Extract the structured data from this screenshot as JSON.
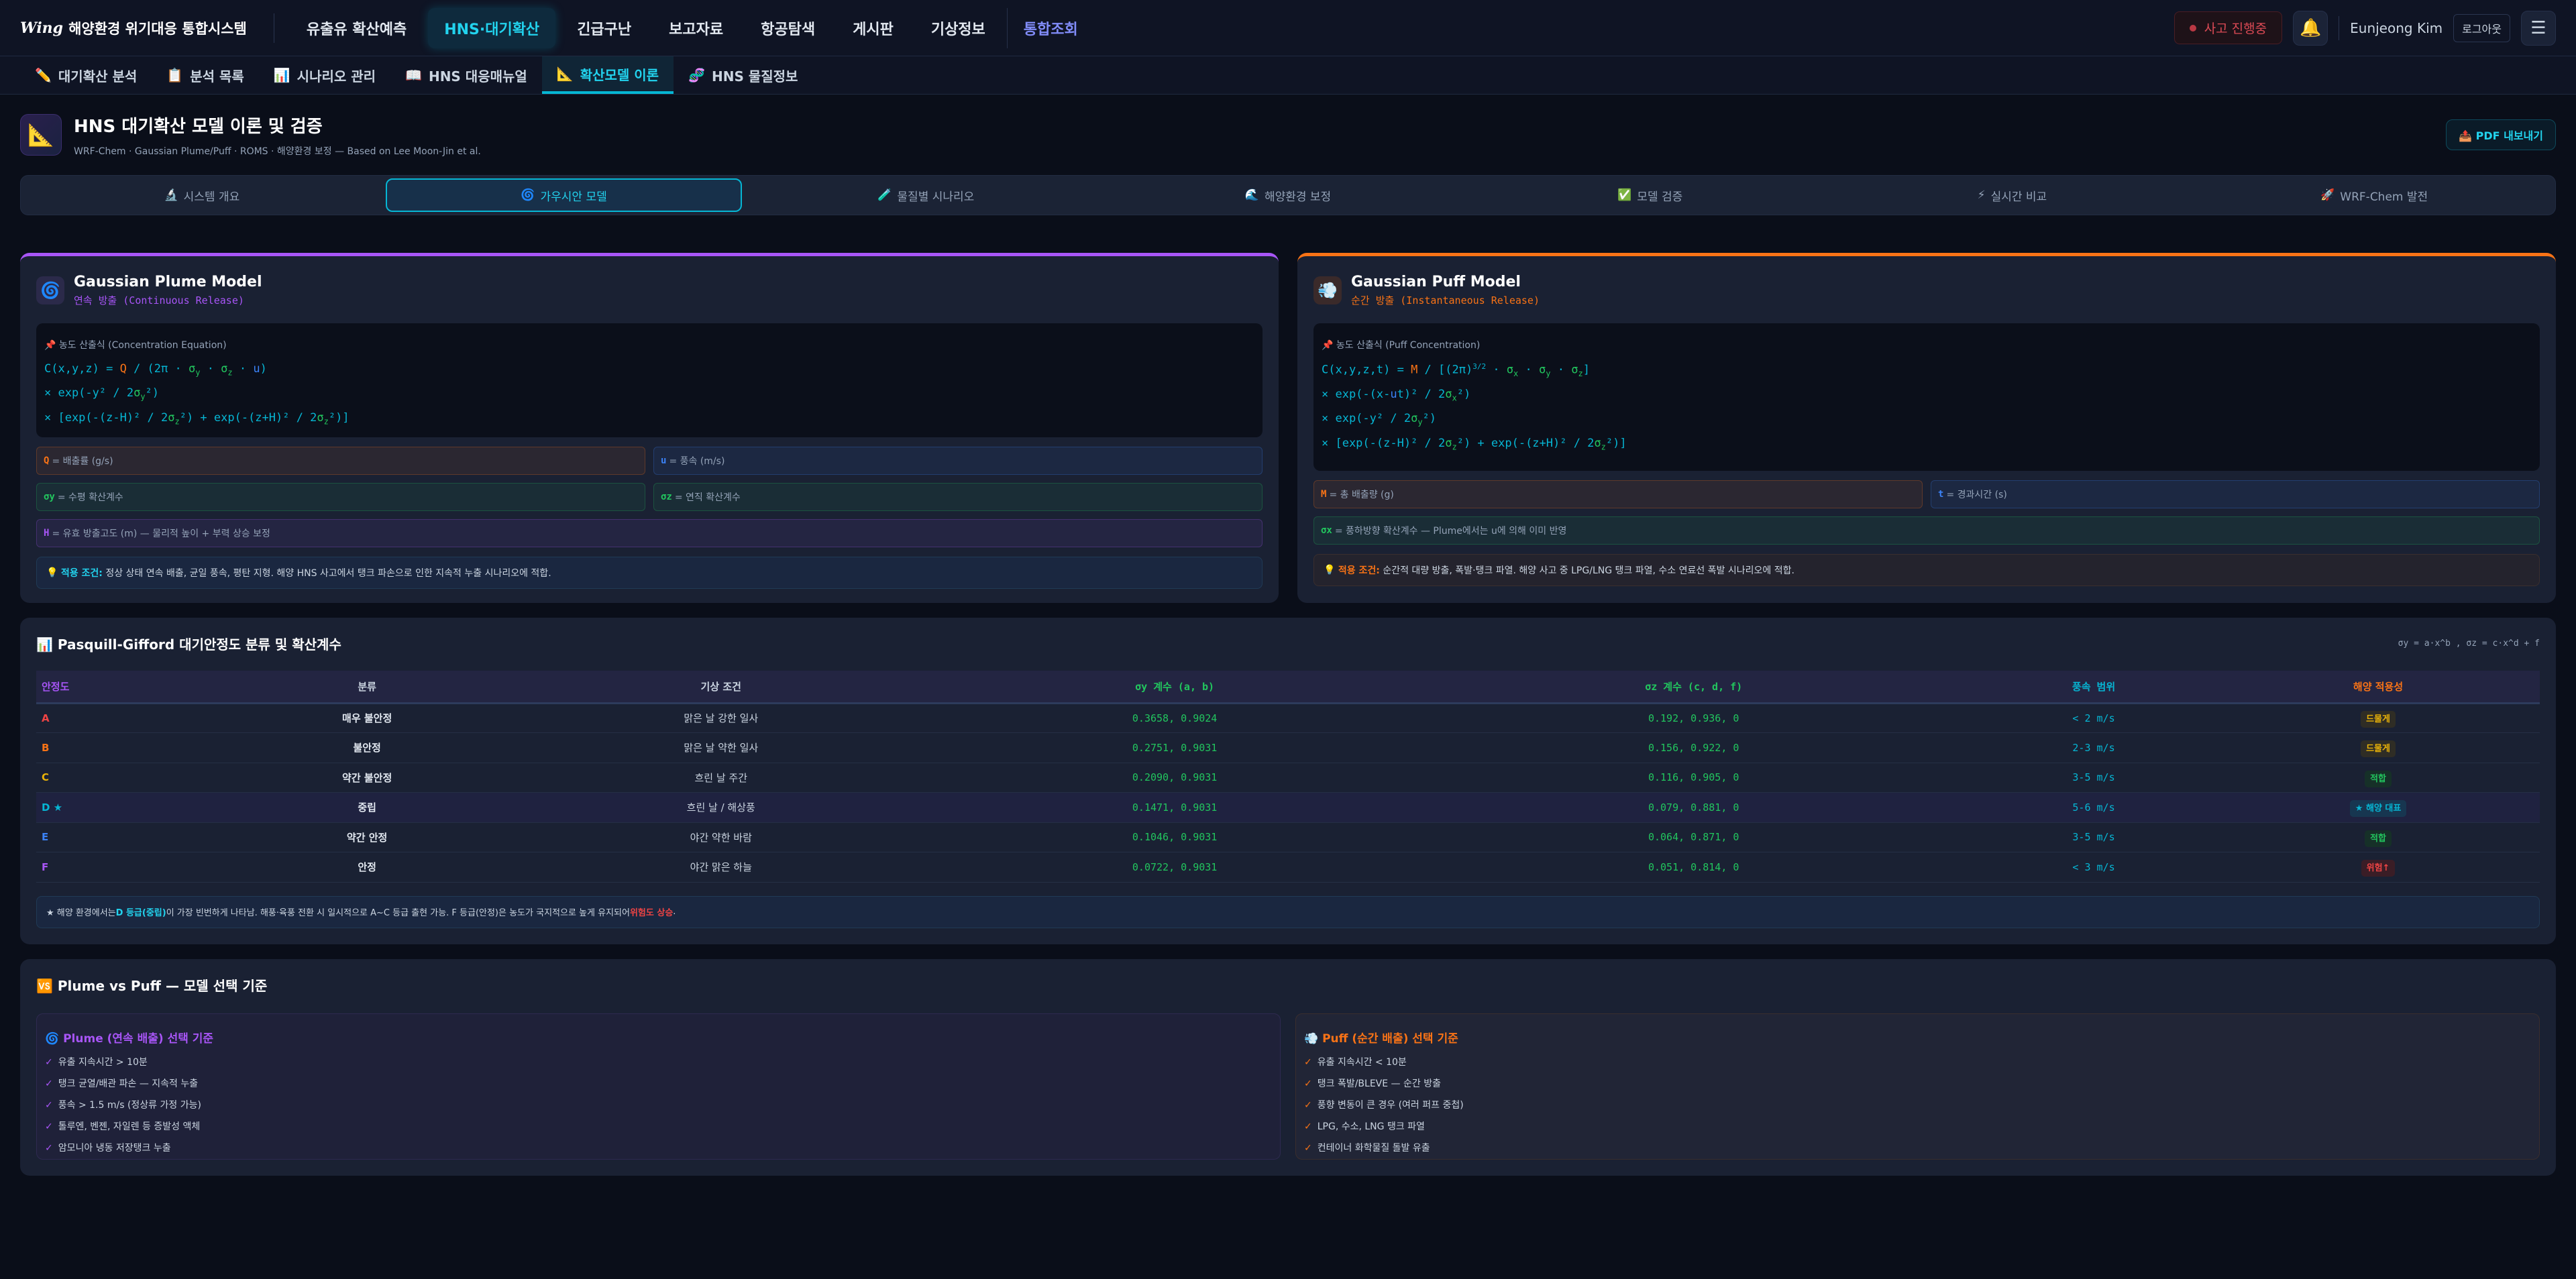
{
  "app": {
    "logo_mark": "Wing",
    "title": "해양환경 위기대응 통합시스템"
  },
  "nav": {
    "items": [
      "유출유 확산예측",
      "HNS·대기확산",
      "긴급구난",
      "보고자료",
      "항공탐색",
      "게시판",
      "기상정보"
    ],
    "integrated": "통합조회",
    "incident": "사고 진행중",
    "user": "Eunjeong Kim",
    "logout": "로그아웃"
  },
  "subnav": [
    {
      "icon": "✏️",
      "label": "대기확산 분석"
    },
    {
      "icon": "📋",
      "label": "분석 목록"
    },
    {
      "icon": "📊",
      "label": "시나리오 관리"
    },
    {
      "icon": "📖",
      "label": "HNS 대응매뉴얼"
    },
    {
      "icon": "📐",
      "label": "확산모델 이론"
    },
    {
      "icon": "🧬",
      "label": "HNS 물질정보"
    }
  ],
  "header": {
    "title": "HNS 대기확산 모델 이론 및 검증",
    "subtitle": "WRF-Chem · Gaussian Plume/Puff · ROMS · 해양환경 보정 — Based on Lee Moon-Jin et al.",
    "pdf": "PDF 내보내기"
  },
  "tabs": [
    {
      "icon": "🔬",
      "label": "시스템 개요"
    },
    {
      "icon": "🌀",
      "label": "가우시안 모델"
    },
    {
      "icon": "🧪",
      "label": "물질별 시나리오"
    },
    {
      "icon": "🌊",
      "label": "해양환경 보정"
    },
    {
      "icon": "✅",
      "label": "모델 검증"
    },
    {
      "icon": "⚡",
      "label": "실시간 비교"
    },
    {
      "icon": "🚀",
      "label": "WRF-Chem 발전"
    }
  ],
  "colors": {
    "cyan": "#06b6d4",
    "purple": "#a855f7",
    "orange": "#f97316",
    "green": "#22c55e",
    "blue": "#3b82f6",
    "red": "#ef4444",
    "yellow": "#eab308"
  },
  "plume": {
    "title": "Gaussian Plume Model",
    "subtitle": "연속 방출 (Continuous Release)",
    "formula_label": "📌 농도 산출식 (Concentration Equation)",
    "lines": [
      [
        {
          "t": "C(x,y,z) = "
        },
        {
          "t": "Q",
          "c": "#f97316"
        },
        {
          "t": " / (2π · "
        },
        {
          "t": "σ",
          "c": "#22c55e",
          "s": "y"
        },
        {
          "t": " · "
        },
        {
          "t": "σ",
          "c": "#22c55e",
          "s": "z"
        },
        {
          "t": " · "
        },
        {
          "t": "u",
          "c": "#3b82f6"
        },
        {
          "t": ")"
        }
      ],
      [
        {
          "t": "× exp(-y² / 2"
        },
        {
          "t": "σ",
          "c": "#22c55e",
          "s": "y"
        },
        {
          "t": "²)"
        }
      ],
      [
        {
          "t": "× [exp(-(z-H)² / 2"
        },
        {
          "t": "σ",
          "c": "#22c55e",
          "s": "z"
        },
        {
          "t": "²) + exp(-(z+H)² / 2"
        },
        {
          "t": "σ",
          "c": "#22c55e",
          "s": "z"
        },
        {
          "t": "²)]"
        }
      ]
    ],
    "vars": [
      {
        "sym": "Q",
        "desc": "= 배출률 (g/s)",
        "c": "#f97316"
      },
      {
        "sym": "u",
        "desc": "= 풍속 (m/s)",
        "c": "#3b82f6"
      },
      {
        "sym": "σy",
        "desc": "= 수평 확산계수",
        "c": "#22c55e"
      },
      {
        "sym": "σz",
        "desc": "= 연직 확산계수",
        "c": "#22c55e"
      },
      {
        "sym": "H",
        "desc": "= 유효 방출고도 (m) — 물리적 높이 + 부력 상승 보정",
        "c": "#a855f7"
      }
    ],
    "note_label": "적용 조건:",
    "note": "정상 상태 연속 배출, 균일 풍속, 평탄 지형. 해양 HNS 사고에서 탱크 파손으로 인한 지속적 누출 시나리오에 적합."
  },
  "puff": {
    "title": "Gaussian Puff Model",
    "subtitle": "순간 방출 (Instantaneous Release)",
    "formula_label": "📌 농도 산출식 (Puff Concentration)",
    "lines": [
      [
        {
          "t": "C(x,y,z,t) = "
        },
        {
          "t": "M",
          "c": "#f97316"
        },
        {
          "t": " / [(2π)"
        },
        {
          "t": "3/2",
          "sup": true
        },
        {
          "t": " · "
        },
        {
          "t": "σ",
          "c": "#22c55e",
          "s": "x"
        },
        {
          "t": " · "
        },
        {
          "t": "σ",
          "c": "#22c55e",
          "s": "y"
        },
        {
          "t": " · "
        },
        {
          "t": "σ",
          "c": "#22c55e",
          "s": "z"
        },
        {
          "t": "]"
        }
      ],
      [
        {
          "t": "× exp(-(x-"
        },
        {
          "t": "u",
          "c": "#3b82f6"
        },
        {
          "t": "t)² / 2"
        },
        {
          "t": "σ",
          "c": "#22c55e",
          "s": "x"
        },
        {
          "t": "²)"
        }
      ],
      [
        {
          "t": "× exp(-y² / 2"
        },
        {
          "t": "σ",
          "c": "#22c55e",
          "s": "y"
        },
        {
          "t": "²)"
        }
      ],
      [
        {
          "t": "× [exp(-(z-H)² / 2"
        },
        {
          "t": "σ",
          "c": "#22c55e",
          "s": "z"
        },
        {
          "t": "²) + exp(-(z+H)² / 2"
        },
        {
          "t": "σ",
          "c": "#22c55e",
          "s": "z"
        },
        {
          "t": "²)]"
        }
      ]
    ],
    "vars": [
      {
        "sym": "M",
        "desc": "= 총 배출량 (g)",
        "c": "#f97316"
      },
      {
        "sym": "t",
        "desc": "= 경과시간 (s)",
        "c": "#3b82f6"
      },
      {
        "sym": "σx",
        "desc": "= 풍하방향 확산계수 — Plume에서는 u에 의해 이미 반영",
        "c": "#22c55e"
      }
    ],
    "note_label": "적용 조건:",
    "note": "순간적 대량 방출, 폭발·탱크 파열. 해양 사고 중 LPG/LNG 탱크 파열, 수소 연료선 폭발 시나리오에 적합."
  },
  "pg": {
    "title": "Pasquill-Gifford 대기안정도 분류 및 확산계수",
    "formula": "σy = a·x^b , σz = c·x^d + f",
    "headers": [
      "안정도",
      "분류",
      "기상 조건",
      "σy 계수 (a, b)",
      "σz 계수 (c, d, f)",
      "풍속 범위",
      "해양 적용성"
    ],
    "rows": [
      {
        "cls": "A",
        "c": "#ef4444",
        "type": "매우 불안정",
        "cond": "맑은 날 강한 일사",
        "sy": "0.3658, 0.9024",
        "sz": "0.192, 0.936, 0",
        "wind": "< 2 m/s",
        "app": "드물게",
        "ac": "#eab308",
        "ab": "#2f2d25"
      },
      {
        "cls": "B",
        "c": "#f97316",
        "type": "불안정",
        "cond": "맑은 날 약한 일사",
        "sy": "0.2751, 0.9031",
        "sz": "0.156, 0.922, 0",
        "wind": "2-3 m/s",
        "app": "드물게",
        "ac": "#eab308",
        "ab": "#2f2d25"
      },
      {
        "cls": "C",
        "c": "#eab308",
        "type": "약간 불안정",
        "cond": "흐린 날 주간",
        "sy": "0.2090, 0.9031",
        "sz": "0.116, 0.905, 0",
        "wind": "3-5 m/s",
        "app": "적합",
        "ac": "#22c55e",
        "ab": "#163028"
      },
      {
        "cls": "D ★",
        "c": "#06b6d4",
        "type": "중립",
        "cond": "흐린 날 / 해상풍",
        "sy": "0.1471, 0.9031",
        "sz": "0.079, 0.881, 0",
        "wind": "5-6 m/s",
        "app": "★ 해양 대표",
        "ac": "#06b6d4",
        "ab": "#173650",
        "hl": true
      },
      {
        "cls": "E",
        "c": "#3b82f6",
        "type": "약간 안정",
        "cond": "야간 약한 바람",
        "sy": "0.1046, 0.9031",
        "sz": "0.064, 0.871, 0",
        "wind": "3-5 m/s",
        "app": "적합",
        "ac": "#22c55e",
        "ab": "#163028"
      },
      {
        "cls": "F",
        "c": "#a855f7",
        "type": "안정",
        "cond": "야간 맑은 하늘",
        "sy": "0.0722, 0.9031",
        "sz": "0.051, 0.814, 0",
        "wind": "< 3 m/s",
        "app": "위험↑",
        "ac": "#ef4444",
        "ab": "#3a1d26"
      }
    ],
    "footnote": {
      "a": "★ 해양 환경에서는 ",
      "b": "D 등급(중립)",
      "c": "이 가장 빈번하게 나타남. 해풍·육풍 전환 시 일시적으로 A~C 등급 출현 가능. F 등급(안정)은 농도가 국지적으로 높게 유지되어 ",
      "d": "위험도 상승",
      "e": "."
    }
  },
  "compare": {
    "title": "🆚 Plume vs Puff — 모델 선택 기준",
    "plume": {
      "title": "🌀 Plume (연속 배출) 선택 기준",
      "items": [
        "유출 지속시간 > 10분",
        "탱크 균열/배관 파손 — 지속적 누출",
        "풍속 > 1.5 m/s (정상류 가정 가능)",
        "톨루엔, 벤젠, 자일렌 등 증발성 액체",
        "암모니아 냉동 저장탱크 누출"
      ]
    },
    "puff": {
      "title": "💨 Puff (순간 배출) 선택 기준",
      "items": [
        "유출 지속시간 < 10분",
        "탱크 폭발/BLEVE — 순간 방출",
        "풍향 변동이 큰 경우 (여러 퍼프 중첩)",
        "LPG, 수소, LNG 탱크 파열",
        "컨테이너 화학물질 돌발 유출"
      ]
    },
    "check": "✓"
  }
}
